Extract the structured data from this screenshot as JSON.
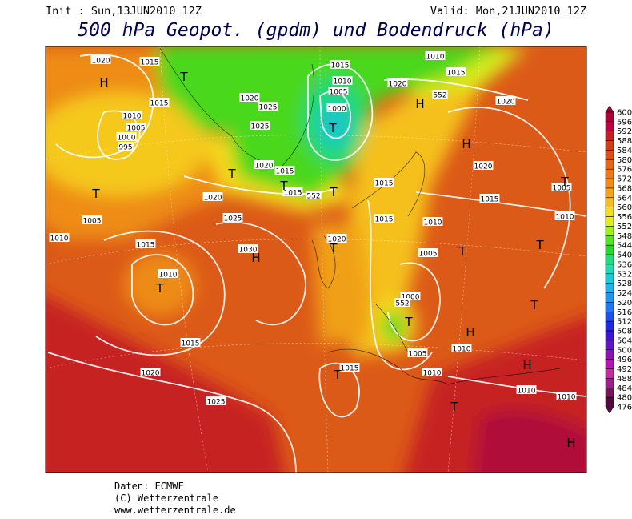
{
  "header": {
    "init": "Init : Sun,13JUN2010 12Z",
    "valid": "Valid: Mon,21JUN2010 12Z",
    "title": "500 hPa Geopot. (gpdm) und Bodendruck (hPa)"
  },
  "colorbar": {
    "levels": [
      600,
      596,
      592,
      588,
      584,
      580,
      576,
      572,
      568,
      564,
      560,
      556,
      552,
      548,
      544,
      540,
      536,
      532,
      528,
      524,
      520,
      516,
      512,
      508,
      504,
      500,
      496,
      492,
      488,
      484,
      480,
      476
    ],
    "colors": [
      "#a00030",
      "#b0003a",
      "#c00040",
      "#c81e1e",
      "#d23c14",
      "#dc5014",
      "#e66414",
      "#f07814",
      "#f08c14",
      "#f5a514",
      "#f5be1e",
      "#f5dc1e",
      "#dcf01e",
      "#a0f01e",
      "#50e61e",
      "#1edc28",
      "#1edc78",
      "#1edcb4",
      "#1ec8dc",
      "#1eb4f0",
      "#1e96f0",
      "#1e78f0",
      "#1e50f0",
      "#1e28e6",
      "#3c14dc",
      "#6414c8",
      "#8c14b4",
      "#b414b4",
      "#c828a0",
      "#a01e8c",
      "#78145a",
      "#500a3c"
    ]
  },
  "map": {
    "isobar_labels": [
      "1020",
      "1015",
      "1015",
      "1010",
      "1005",
      "1000",
      "995",
      "1020",
      "1025",
      "1025",
      "1015",
      "1010",
      "1005",
      "1000",
      "1010",
      "1015",
      "1020",
      "552",
      "1020",
      "1020",
      "1015",
      "1005",
      "1010",
      "1020",
      "1015",
      "1015",
      "552",
      "1020",
      "1015",
      "1015",
      "1010",
      "1005",
      "1010",
      "1025",
      "1015",
      "1030",
      "1010",
      "1020",
      "1005",
      "1000",
      "552",
      "1015",
      "1005",
      "1010",
      "1020",
      "1015",
      "1010",
      "1025",
      "1010",
      "1010"
    ],
    "centers": [
      "H",
      "T",
      "H",
      "H",
      "T",
      "T",
      "T",
      "T",
      "T",
      "H",
      "T",
      "T",
      "T",
      "T",
      "T",
      "H",
      "T",
      "T",
      "T",
      "H",
      "T",
      "H"
    ]
  },
  "footer": {
    "source": "Daten: ECMWF",
    "copyright": "(C) Wetterzentrale",
    "url": "www.wetterzentrale.de"
  }
}
